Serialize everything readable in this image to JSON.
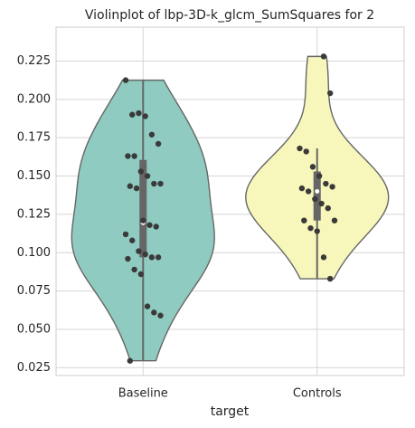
{
  "chart_data": {
    "type": "violin",
    "title": "Violinplot of lbp-3D-k_glcm_SumSquares for 2",
    "x_label": "target",
    "categories": [
      "Baseline",
      "Controls"
    ],
    "series": [
      {
        "name": "Baseline",
        "color": "#8fcbc0",
        "values": [
          0.2125,
          0.19,
          0.191,
          0.189,
          0.177,
          0.171,
          0.163,
          0.163,
          0.153,
          0.15,
          0.145,
          0.145,
          0.1434,
          0.142,
          0.121,
          0.118,
          0.117,
          0.112,
          0.108,
          0.101,
          0.099,
          0.097,
          0.097,
          0.096,
          0.089,
          0.086,
          0.065,
          0.061,
          0.059,
          0.0295
        ]
      },
      {
        "name": "Controls",
        "color": "#f7f7bb",
        "values": [
          0.228,
          0.204,
          0.168,
          0.166,
          0.156,
          0.15,
          0.145,
          0.143,
          0.142,
          0.14,
          0.135,
          0.132,
          0.129,
          0.121,
          0.121,
          0.116,
          0.114,
          0.097,
          0.083
        ]
      }
    ],
    "ylim": [
      0.0199,
      0.2471
    ],
    "yticks": [
      0.025,
      {
        "value": 0.05,
        "label": "0.050"
      },
      0.075,
      {
        "value": 0.1,
        "label": "0.100"
      },
      0.125,
      {
        "value": 0.15,
        "label": "0.150"
      },
      0.175,
      {
        "value": 0.2,
        "label": "0.200"
      },
      0.225
    ],
    "grid": true
  }
}
